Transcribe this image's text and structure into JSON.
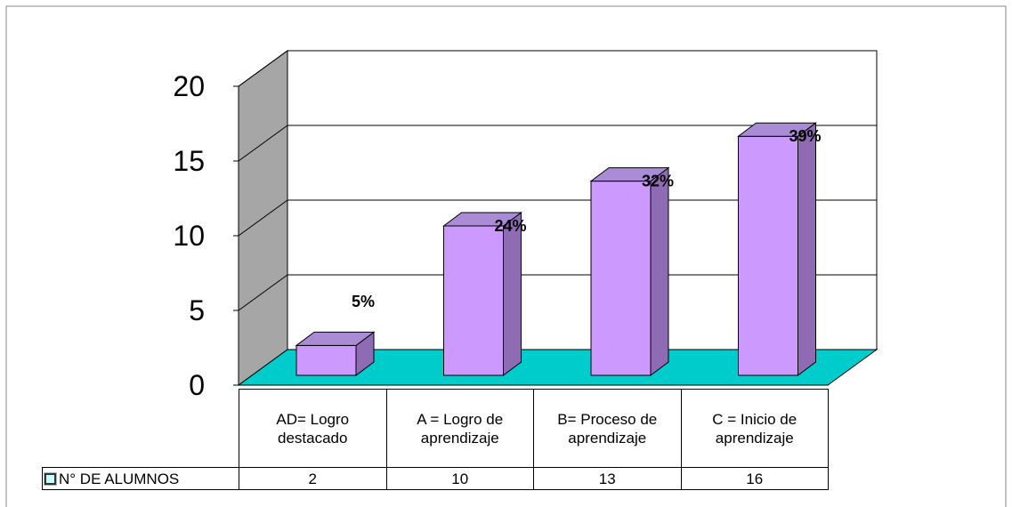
{
  "chart_data": {
    "type": "bar3d",
    "categories": [
      "AD= Logro destacado",
      "A = Logro de aprendizaje",
      "B= Proceso de aprendizaje",
      "C = Inicio de aprendizaje"
    ],
    "series": [
      {
        "name": "N° DE ALUMNOS",
        "color": "#cc99ff",
        "values": [
          2,
          10,
          13,
          16
        ]
      }
    ],
    "bar_annotations": [
      "5%",
      "24%",
      "32%",
      "39%"
    ],
    "ylim": [
      0,
      20
    ],
    "yticks": [
      0,
      5,
      10,
      15,
      20
    ],
    "grid": true,
    "floor_color": "#00cccc",
    "wall_color": "#a6a6a6"
  }
}
